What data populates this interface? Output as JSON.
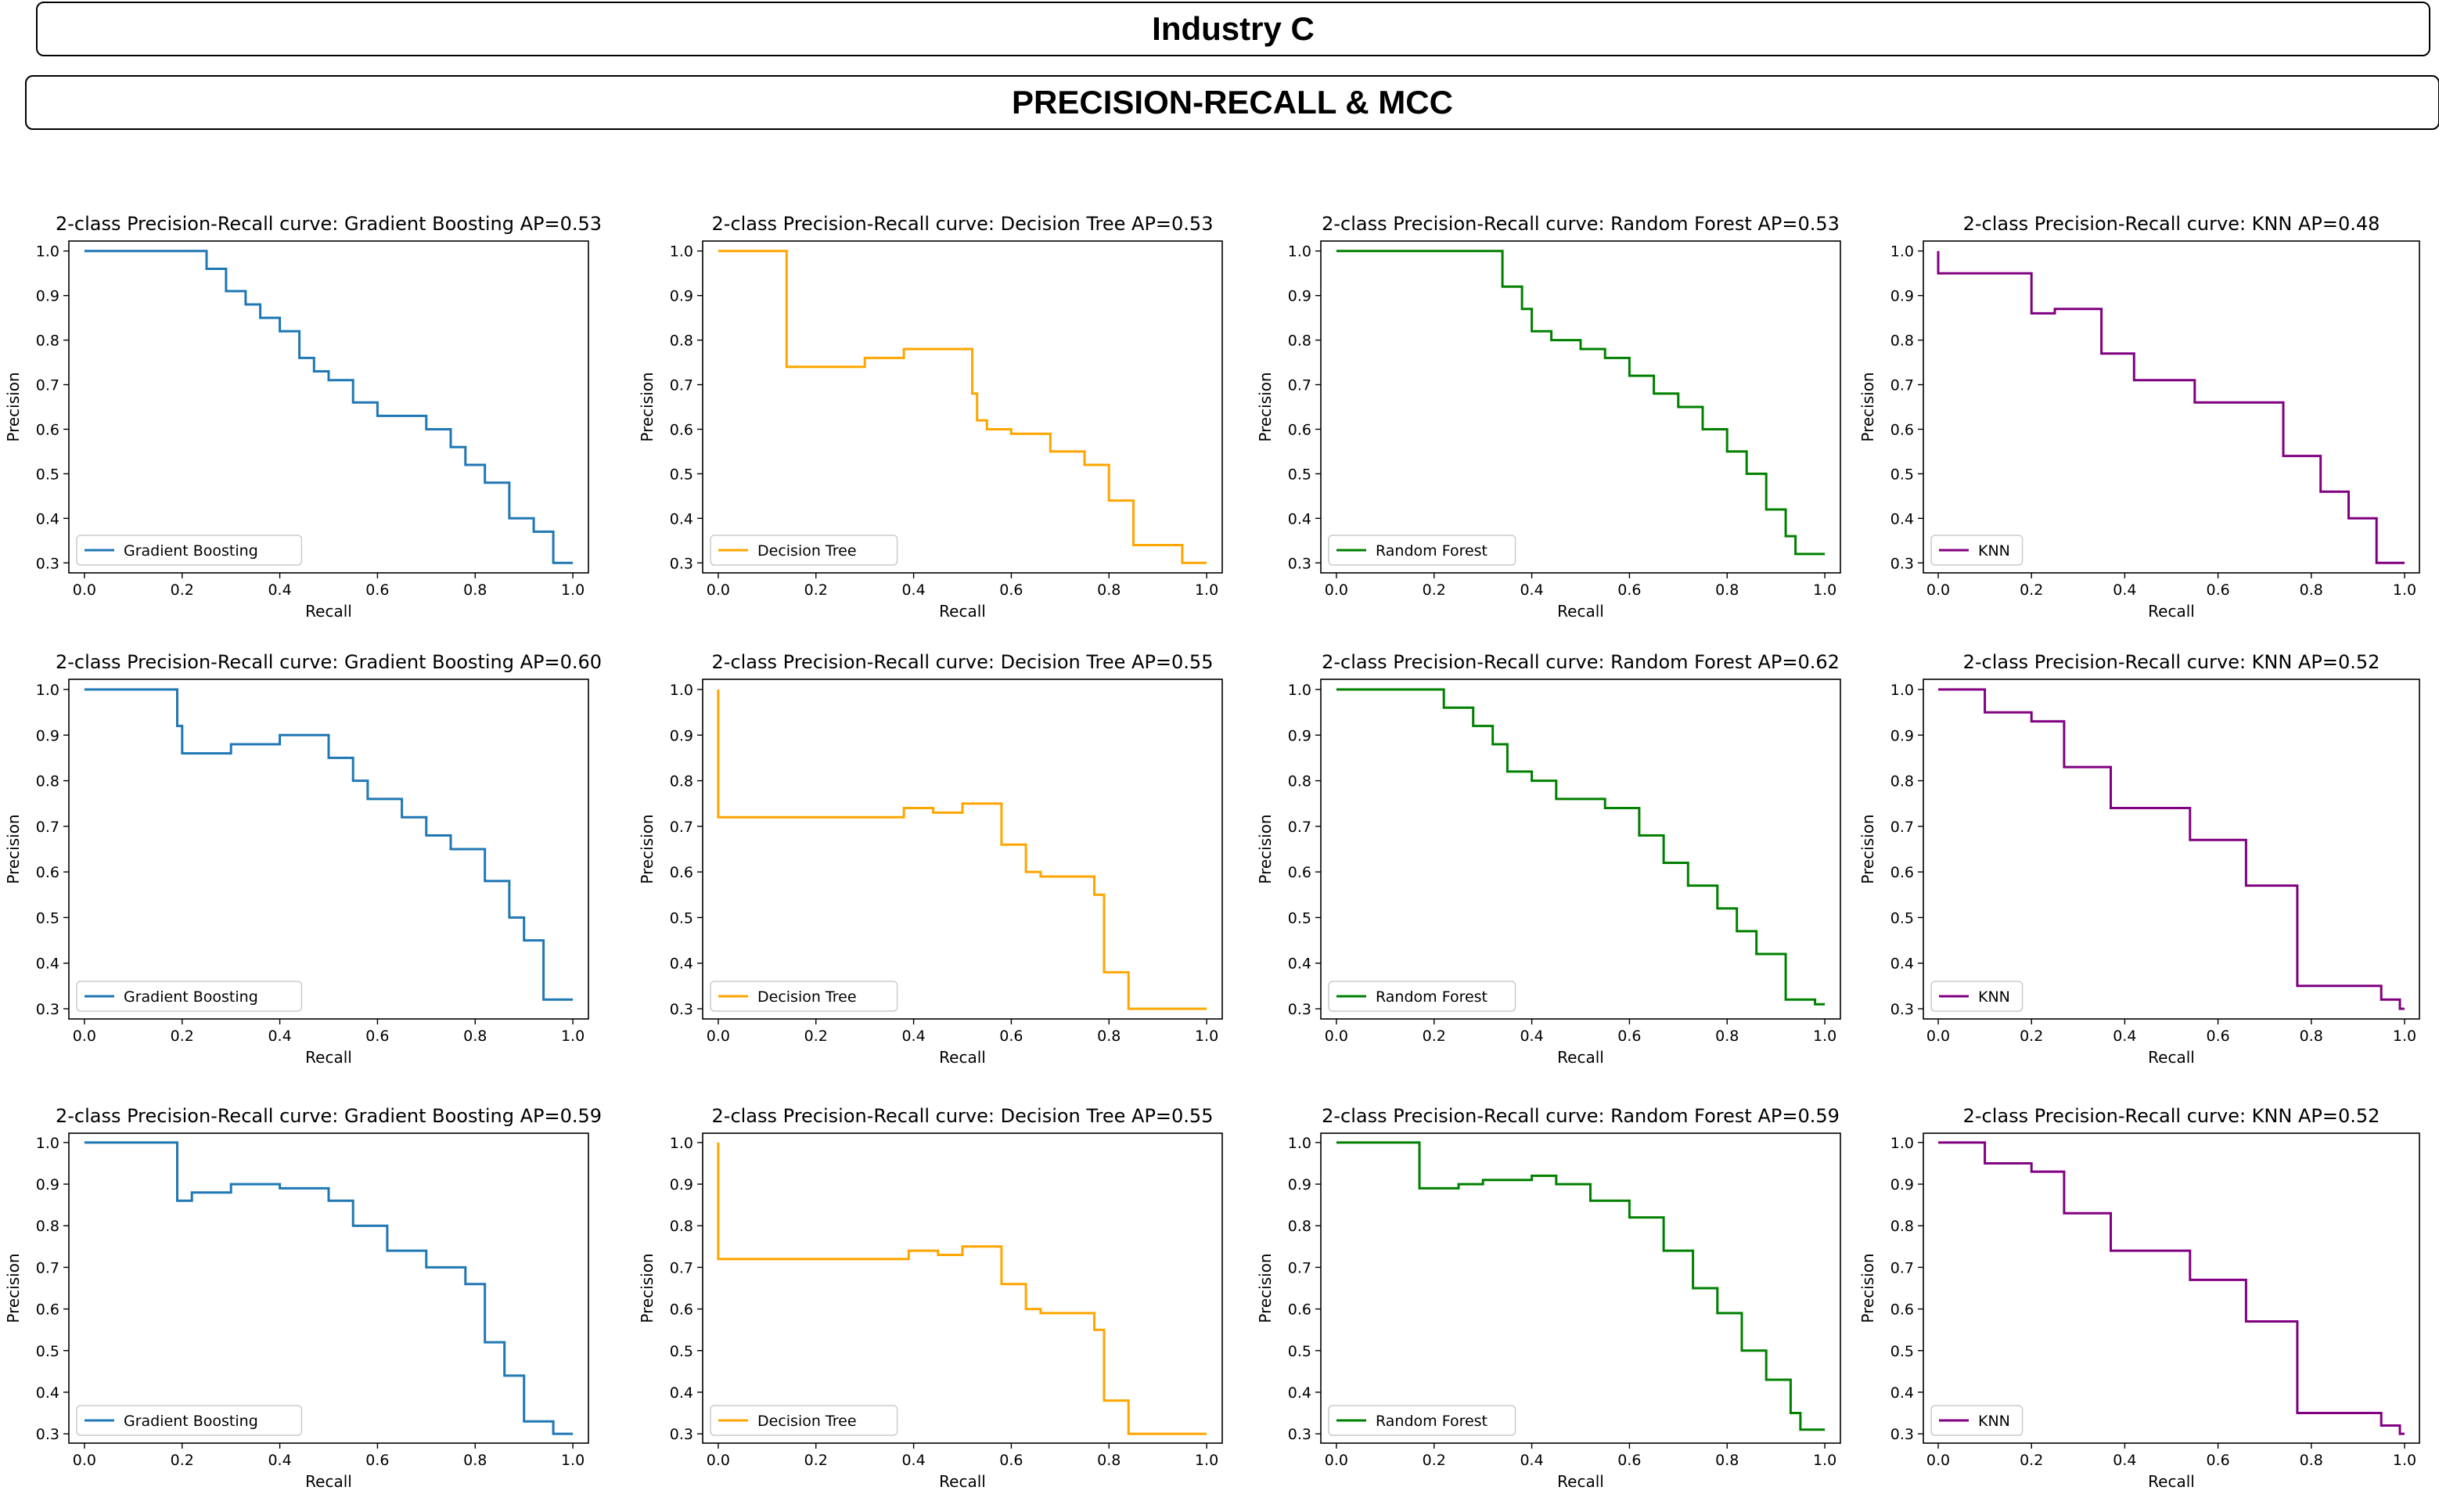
{
  "header": {
    "title": "Industry C",
    "subtitle": "PRECISION-RECALL & MCC"
  },
  "chart_data": [
    {
      "type": "line",
      "model": "Gradient Boosting",
      "color": "#1f77b4",
      "title": "2-class Precision-Recall curve: Gradient Boosting AP=0.53",
      "xlabel": "Recall",
      "ylabel": "Precision",
      "legend": "Gradient Boosting",
      "xlim": [
        0,
        1
      ],
      "ylim": [
        0.3,
        1
      ],
      "x": [
        0,
        0.25,
        0.25,
        0.29,
        0.29,
        0.33,
        0.33,
        0.36,
        0.36,
        0.4,
        0.4,
        0.44,
        0.44,
        0.47,
        0.47,
        0.5,
        0.5,
        0.55,
        0.55,
        0.6,
        0.6,
        0.7,
        0.7,
        0.75,
        0.75,
        0.78,
        0.78,
        0.82,
        0.82,
        0.87,
        0.87,
        0.92,
        0.92,
        0.96,
        0.96,
        1
      ],
      "y": [
        1,
        1,
        0.96,
        0.96,
        0.91,
        0.91,
        0.88,
        0.88,
        0.85,
        0.85,
        0.82,
        0.82,
        0.76,
        0.76,
        0.73,
        0.73,
        0.71,
        0.71,
        0.66,
        0.66,
        0.63,
        0.63,
        0.6,
        0.6,
        0.56,
        0.56,
        0.52,
        0.52,
        0.48,
        0.48,
        0.4,
        0.4,
        0.37,
        0.37,
        0.3,
        0.3
      ]
    },
    {
      "type": "line",
      "model": "Decision Tree",
      "color": "#ffa500",
      "title": "2-class Precision-Recall curve: Decision Tree AP=0.53",
      "xlabel": "Recall",
      "ylabel": "Precision",
      "legend": "Decision Tree",
      "xlim": [
        0,
        1
      ],
      "ylim": [
        0.3,
        1
      ],
      "x": [
        0,
        0.14,
        0.14,
        0.16,
        0.16,
        0.3,
        0.3,
        0.38,
        0.38,
        0.52,
        0.52,
        0.53,
        0.53,
        0.55,
        0.55,
        0.6,
        0.6,
        0.68,
        0.68,
        0.75,
        0.75,
        0.8,
        0.8,
        0.85,
        0.85,
        0.95,
        0.95,
        1
      ],
      "y": [
        1,
        1,
        0.74,
        0.74,
        0.74,
        0.74,
        0.76,
        0.76,
        0.78,
        0.78,
        0.68,
        0.68,
        0.62,
        0.62,
        0.6,
        0.6,
        0.59,
        0.59,
        0.55,
        0.55,
        0.52,
        0.52,
        0.44,
        0.44,
        0.34,
        0.34,
        0.3,
        0.3
      ]
    },
    {
      "type": "line",
      "model": "Random Forest",
      "color": "#008000",
      "title": "2-class Precision-Recall curve: Random Forest AP=0.53",
      "xlabel": "Recall",
      "ylabel": "Precision",
      "legend": "Random Forest",
      "xlim": [
        0,
        1
      ],
      "ylim": [
        0.3,
        1
      ],
      "x": [
        0,
        0.34,
        0.34,
        0.38,
        0.38,
        0.4,
        0.4,
        0.44,
        0.44,
        0.5,
        0.5,
        0.55,
        0.55,
        0.6,
        0.6,
        0.65,
        0.65,
        0.7,
        0.7,
        0.75,
        0.75,
        0.8,
        0.8,
        0.84,
        0.84,
        0.88,
        0.88,
        0.92,
        0.92,
        0.94,
        0.94,
        1
      ],
      "y": [
        1,
        1,
        0.92,
        0.92,
        0.87,
        0.87,
        0.82,
        0.82,
        0.8,
        0.8,
        0.78,
        0.78,
        0.76,
        0.76,
        0.72,
        0.72,
        0.68,
        0.68,
        0.65,
        0.65,
        0.6,
        0.6,
        0.55,
        0.55,
        0.5,
        0.5,
        0.42,
        0.42,
        0.36,
        0.36,
        0.32,
        0.32
      ]
    },
    {
      "type": "line",
      "model": "KNN",
      "color": "#800080",
      "title": "2-class Precision-Recall curve: KNN AP=0.48",
      "xlabel": "Recall",
      "ylabel": "Precision",
      "legend": "KNN",
      "xlim": [
        0,
        1
      ],
      "ylim": [
        0.3,
        1
      ],
      "x": [
        0,
        0,
        0.2,
        0.2,
        0.25,
        0.25,
        0.35,
        0.35,
        0.42,
        0.42,
        0.55,
        0.55,
        0.74,
        0.74,
        0.82,
        0.82,
        0.88,
        0.88,
        0.94,
        0.94,
        1
      ],
      "y": [
        1,
        0.95,
        0.95,
        0.86,
        0.86,
        0.87,
        0.87,
        0.77,
        0.77,
        0.71,
        0.71,
        0.66,
        0.66,
        0.54,
        0.54,
        0.46,
        0.46,
        0.4,
        0.4,
        0.3,
        0.3
      ]
    },
    {
      "type": "line",
      "model": "Gradient Boosting",
      "color": "#1f77b4",
      "title": "2-class Precision-Recall curve: Gradient Boosting AP=0.60",
      "xlabel": "Recall",
      "ylabel": "Precision",
      "legend": "Gradient Boosting",
      "xlim": [
        0,
        1
      ],
      "ylim": [
        0.3,
        1
      ],
      "x": [
        0,
        0.19,
        0.19,
        0.2,
        0.2,
        0.3,
        0.3,
        0.4,
        0.4,
        0.5,
        0.5,
        0.55,
        0.55,
        0.58,
        0.58,
        0.65,
        0.65,
        0.7,
        0.7,
        0.75,
        0.75,
        0.82,
        0.82,
        0.87,
        0.87,
        0.9,
        0.9,
        0.94,
        0.94,
        1
      ],
      "y": [
        1,
        1,
        0.92,
        0.92,
        0.86,
        0.86,
        0.88,
        0.88,
        0.9,
        0.9,
        0.85,
        0.85,
        0.8,
        0.8,
        0.76,
        0.76,
        0.72,
        0.72,
        0.68,
        0.68,
        0.65,
        0.65,
        0.58,
        0.58,
        0.5,
        0.5,
        0.45,
        0.45,
        0.32,
        0.32
      ]
    },
    {
      "type": "line",
      "model": "Decision Tree",
      "color": "#ffa500",
      "title": "2-class Precision-Recall curve: Decision Tree AP=0.55",
      "xlabel": "Recall",
      "ylabel": "Precision",
      "legend": "Decision Tree",
      "xlim": [
        0,
        1
      ],
      "ylim": [
        0.3,
        1
      ],
      "x": [
        0,
        0,
        0.38,
        0.38,
        0.44,
        0.44,
        0.5,
        0.5,
        0.58,
        0.58,
        0.63,
        0.63,
        0.66,
        0.66,
        0.77,
        0.77,
        0.79,
        0.79,
        0.84,
        0.84,
        1
      ],
      "y": [
        1,
        0.72,
        0.72,
        0.74,
        0.74,
        0.73,
        0.73,
        0.75,
        0.75,
        0.66,
        0.66,
        0.6,
        0.6,
        0.59,
        0.59,
        0.55,
        0.55,
        0.38,
        0.38,
        0.3,
        0.3
      ]
    },
    {
      "type": "line",
      "model": "Random Forest",
      "color": "#008000",
      "title": "2-class Precision-Recall curve: Random Forest AP=0.62",
      "xlabel": "Recall",
      "ylabel": "Precision",
      "legend": "Random Forest",
      "xlim": [
        0,
        1
      ],
      "ylim": [
        0.3,
        1
      ],
      "x": [
        0,
        0.22,
        0.22,
        0.28,
        0.28,
        0.32,
        0.32,
        0.35,
        0.35,
        0.4,
        0.4,
        0.45,
        0.45,
        0.55,
        0.55,
        0.62,
        0.62,
        0.67,
        0.67,
        0.72,
        0.72,
        0.78,
        0.78,
        0.82,
        0.82,
        0.86,
        0.86,
        0.92,
        0.92,
        0.98,
        0.98,
        1
      ],
      "y": [
        1,
        1,
        0.96,
        0.96,
        0.92,
        0.92,
        0.88,
        0.88,
        0.82,
        0.82,
        0.8,
        0.8,
        0.76,
        0.76,
        0.74,
        0.74,
        0.68,
        0.68,
        0.62,
        0.62,
        0.57,
        0.57,
        0.52,
        0.52,
        0.47,
        0.47,
        0.42,
        0.42,
        0.32,
        0.32,
        0.31,
        0.31
      ]
    },
    {
      "type": "line",
      "model": "KNN",
      "color": "#800080",
      "title": "2-class Precision-Recall curve: KNN AP=0.52",
      "xlabel": "Recall",
      "ylabel": "Precision",
      "legend": "KNN",
      "xlim": [
        0,
        1
      ],
      "ylim": [
        0.3,
        1
      ],
      "x": [
        0,
        0.1,
        0.1,
        0.2,
        0.2,
        0.27,
        0.27,
        0.37,
        0.37,
        0.54,
        0.54,
        0.66,
        0.66,
        0.77,
        0.77,
        0.95,
        0.95,
        0.99,
        0.99,
        1
      ],
      "y": [
        1,
        1,
        0.95,
        0.95,
        0.93,
        0.93,
        0.83,
        0.83,
        0.74,
        0.74,
        0.67,
        0.67,
        0.57,
        0.57,
        0.35,
        0.35,
        0.32,
        0.32,
        0.3,
        0.3
      ]
    },
    {
      "type": "line",
      "model": "Gradient Boosting",
      "color": "#1f77b4",
      "title": "2-class Precision-Recall curve: Gradient Boosting AP=0.59",
      "xlabel": "Recall",
      "ylabel": "Precision",
      "legend": "Gradient Boosting",
      "xlim": [
        0,
        1
      ],
      "ylim": [
        0.3,
        1
      ],
      "x": [
        0,
        0.19,
        0.19,
        0.22,
        0.22,
        0.3,
        0.3,
        0.4,
        0.4,
        0.5,
        0.5,
        0.55,
        0.55,
        0.62,
        0.62,
        0.7,
        0.7,
        0.78,
        0.78,
        0.82,
        0.82,
        0.86,
        0.86,
        0.9,
        0.9,
        0.96,
        0.96,
        1
      ],
      "y": [
        1,
        1,
        0.86,
        0.86,
        0.88,
        0.88,
        0.9,
        0.9,
        0.89,
        0.89,
        0.86,
        0.86,
        0.8,
        0.8,
        0.74,
        0.74,
        0.7,
        0.7,
        0.66,
        0.66,
        0.52,
        0.52,
        0.44,
        0.44,
        0.33,
        0.33,
        0.3,
        0.3
      ]
    },
    {
      "type": "line",
      "model": "Decision Tree",
      "color": "#ffa500",
      "title": "2-class Precision-Recall curve: Decision Tree AP=0.55",
      "xlabel": "Recall",
      "ylabel": "Precision",
      "legend": "Decision Tree",
      "xlim": [
        0,
        1
      ],
      "ylim": [
        0.3,
        1
      ],
      "x": [
        0,
        0,
        0.39,
        0.39,
        0.45,
        0.45,
        0.5,
        0.5,
        0.58,
        0.58,
        0.63,
        0.63,
        0.66,
        0.66,
        0.77,
        0.77,
        0.79,
        0.79,
        0.84,
        0.84,
        1
      ],
      "y": [
        1,
        0.72,
        0.72,
        0.74,
        0.74,
        0.73,
        0.73,
        0.75,
        0.75,
        0.66,
        0.66,
        0.6,
        0.6,
        0.59,
        0.59,
        0.55,
        0.55,
        0.38,
        0.38,
        0.3,
        0.3
      ]
    },
    {
      "type": "line",
      "model": "Random Forest",
      "color": "#008000",
      "title": "2-class Precision-Recall curve: Random Forest AP=0.59",
      "xlabel": "Recall",
      "ylabel": "Precision",
      "legend": "Random Forest",
      "xlim": [
        0,
        1
      ],
      "ylim": [
        0.3,
        1
      ],
      "x": [
        0,
        0.17,
        0.17,
        0.25,
        0.25,
        0.3,
        0.3,
        0.4,
        0.4,
        0.45,
        0.45,
        0.52,
        0.52,
        0.6,
        0.6,
        0.67,
        0.67,
        0.73,
        0.73,
        0.78,
        0.78,
        0.83,
        0.83,
        0.88,
        0.88,
        0.93,
        0.93,
        0.95,
        0.95,
        1
      ],
      "y": [
        1,
        1,
        0.89,
        0.89,
        0.9,
        0.9,
        0.91,
        0.91,
        0.92,
        0.92,
        0.9,
        0.9,
        0.86,
        0.86,
        0.82,
        0.82,
        0.74,
        0.74,
        0.65,
        0.65,
        0.59,
        0.59,
        0.5,
        0.5,
        0.43,
        0.43,
        0.35,
        0.35,
        0.31,
        0.31
      ]
    },
    {
      "type": "line",
      "model": "KNN",
      "color": "#800080",
      "title": "2-class Precision-Recall curve: KNN AP=0.52",
      "xlabel": "Recall",
      "ylabel": "Precision",
      "legend": "KNN",
      "xlim": [
        0,
        1
      ],
      "ylim": [
        0.3,
        1
      ],
      "x": [
        0,
        0.1,
        0.1,
        0.2,
        0.2,
        0.27,
        0.27,
        0.37,
        0.37,
        0.54,
        0.54,
        0.66,
        0.66,
        0.77,
        0.77,
        0.95,
        0.95,
        0.99,
        0.99,
        1
      ],
      "y": [
        1,
        1,
        0.95,
        0.95,
        0.93,
        0.93,
        0.83,
        0.83,
        0.74,
        0.74,
        0.67,
        0.67,
        0.57,
        0.57,
        0.35,
        0.35,
        0.32,
        0.32,
        0.3,
        0.3
      ]
    }
  ]
}
